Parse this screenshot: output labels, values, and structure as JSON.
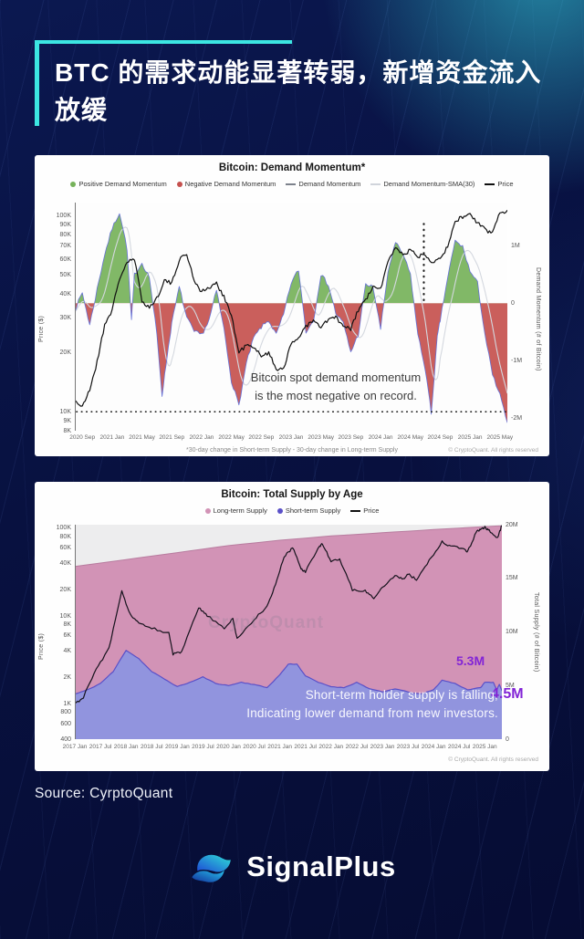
{
  "title": {
    "text": "BTC 的需求动能显著转弱，新增资金流入放缓",
    "accent_color": "#3ce6e2"
  },
  "source": {
    "text": "Source: CyrptoQuant"
  },
  "brand": {
    "name": "SignalPlus"
  },
  "chart_data": [
    {
      "type": "area+line",
      "title": "Bitcoin: Demand Momentum*",
      "legend": [
        {
          "label": "Positive Demand Momentum",
          "marker": "dot",
          "color": "#76b25a"
        },
        {
          "label": "Negative Demand Momentum",
          "marker": "dot",
          "color": "#c5514e"
        },
        {
          "label": "Demand Momentum",
          "marker": "line",
          "color": "#7d828c"
        },
        {
          "label": "Demand Momentum-SMA(30)",
          "marker": "line",
          "color": "#d0d4db"
        },
        {
          "label": "Price",
          "marker": "line",
          "color": "#101010"
        }
      ],
      "ylabel_left": "Price ($)",
      "ylabel_right": "Demand Momentum (# of Bitcoin)",
      "y_left_log": true,
      "y_left_range": [
        8000,
        117000
      ],
      "y_right_range": [
        -2.22,
        1.75
      ],
      "y_left_ticks": [
        {
          "label": "100K",
          "v": 100000
        },
        {
          "label": "90K",
          "v": 90000
        },
        {
          "label": "80K",
          "v": 80000
        },
        {
          "label": "70K",
          "v": 70000
        },
        {
          "label": "60K",
          "v": 60000
        },
        {
          "label": "50K",
          "v": 50000
        },
        {
          "label": "40K",
          "v": 40000
        },
        {
          "label": "30K",
          "v": 30000
        },
        {
          "label": "20K",
          "v": 20000
        },
        {
          "label": "10K",
          "v": 10000
        },
        {
          "label": "9K",
          "v": 9000
        },
        {
          "label": "8K",
          "v": 8000
        }
      ],
      "y_right_ticks": [
        {
          "label": "1M",
          "v": 1
        },
        {
          "label": "0",
          "v": 0
        },
        {
          "label": "-1M",
          "v": -1
        },
        {
          "label": "-2M",
          "v": -2
        }
      ],
      "months": 58,
      "x_ticks": [
        {
          "label": "2020 Sep",
          "m": 1
        },
        {
          "label": "2021 Jan",
          "m": 5
        },
        {
          "label": "2021 May",
          "m": 9
        },
        {
          "label": "2021 Sep",
          "m": 13
        },
        {
          "label": "2022 Jan",
          "m": 17
        },
        {
          "label": "2022 May",
          "m": 21
        },
        {
          "label": "2022 Sep",
          "m": 25
        },
        {
          "label": "2023 Jan",
          "m": 29
        },
        {
          "label": "2023 May",
          "m": 33
        },
        {
          "label": "2023 Sep",
          "m": 37
        },
        {
          "label": "2024 Jan",
          "m": 41
        },
        {
          "label": "2024 May",
          "m": 45
        },
        {
          "label": "2024 Sep",
          "m": 49
        },
        {
          "label": "2025 Jan",
          "m": 53
        },
        {
          "label": "2025 May",
          "m": 57
        }
      ],
      "price": [
        [
          0,
          11500
        ],
        [
          1,
          10500
        ],
        [
          2,
          13000
        ],
        [
          3,
          18000
        ],
        [
          4,
          28000
        ],
        [
          5,
          33000
        ],
        [
          6,
          48000
        ],
        [
          7,
          58000
        ],
        [
          8,
          60000
        ],
        [
          9,
          37000
        ],
        [
          10,
          34000
        ],
        [
          11,
          38000
        ],
        [
          12,
          47000
        ],
        [
          13,
          45000
        ],
        [
          14,
          60000
        ],
        [
          15,
          64000
        ],
        [
          16,
          47000
        ],
        [
          17,
          41000
        ],
        [
          18,
          43000
        ],
        [
          19,
          45000
        ],
        [
          20,
          39000
        ],
        [
          21,
          31000
        ],
        [
          22,
          20000
        ],
        [
          23,
          22000
        ],
        [
          24,
          21000
        ],
        [
          25,
          19500
        ],
        [
          26,
          20000
        ],
        [
          27,
          16500
        ],
        [
          28,
          16800
        ],
        [
          29,
          22000
        ],
        [
          30,
          24000
        ],
        [
          31,
          27500
        ],
        [
          32,
          29000
        ],
        [
          33,
          27000
        ],
        [
          34,
          29500
        ],
        [
          35,
          30500
        ],
        [
          36,
          27000
        ],
        [
          37,
          26500
        ],
        [
          38,
          33000
        ],
        [
          39,
          37500
        ],
        [
          40,
          43000
        ],
        [
          41,
          42500
        ],
        [
          42,
          58000
        ],
        [
          43,
          70000
        ],
        [
          44,
          63000
        ],
        [
          45,
          67000
        ],
        [
          46,
          62000
        ],
        [
          47,
          64000
        ],
        [
          48,
          58000
        ],
        [
          49,
          62000
        ],
        [
          50,
          69000
        ],
        [
          51,
          94000
        ],
        [
          52,
          99000
        ],
        [
          53,
          102000
        ],
        [
          54,
          92000
        ],
        [
          55,
          85000
        ],
        [
          56,
          82000
        ],
        [
          57,
          104000
        ],
        [
          58,
          107000
        ]
      ],
      "momentum": [
        [
          0,
          -0.12
        ],
        [
          1,
          0.18
        ],
        [
          2,
          -0.38
        ],
        [
          3,
          0.25
        ],
        [
          4,
          0.85
        ],
        [
          5,
          1.3
        ],
        [
          6,
          1.58
        ],
        [
          7,
          0.95
        ],
        [
          7.6,
          -0.3
        ],
        [
          8,
          0.5
        ],
        [
          9,
          0.7
        ],
        [
          10,
          0.45
        ],
        [
          11,
          -0.55
        ],
        [
          11.7,
          -1.6
        ],
        [
          12.4,
          -0.9
        ],
        [
          13,
          -0.35
        ],
        [
          14,
          0.28
        ],
        [
          15,
          -0.25
        ],
        [
          16,
          -0.5
        ],
        [
          17,
          -0.55
        ],
        [
          18,
          -0.3
        ],
        [
          19,
          0.22
        ],
        [
          20,
          -0.45
        ],
        [
          21,
          -1.35
        ],
        [
          22,
          -1.78
        ],
        [
          23,
          -1.05
        ],
        [
          24,
          -0.6
        ],
        [
          25,
          -0.42
        ],
        [
          26,
          -0.3
        ],
        [
          27,
          -0.55
        ],
        [
          28,
          -0.2
        ],
        [
          29,
          0.35
        ],
        [
          30,
          0.58
        ],
        [
          31,
          -0.5
        ],
        [
          32,
          -0.3
        ],
        [
          33,
          0.5
        ],
        [
          34,
          0.32
        ],
        [
          35,
          -0.18
        ],
        [
          36,
          -0.35
        ],
        [
          37,
          -0.85
        ],
        [
          38,
          -0.55
        ],
        [
          39,
          0.32
        ],
        [
          40,
          0.28
        ],
        [
          41,
          -0.45
        ],
        [
          42,
          0.55
        ],
        [
          43,
          1.05
        ],
        [
          44,
          0.85
        ],
        [
          45,
          0.5
        ],
        [
          46,
          -0.55
        ],
        [
          47,
          -1.15
        ],
        [
          47.8,
          -1.92
        ],
        [
          48.6,
          -0.6
        ],
        [
          49,
          -0.3
        ],
        [
          50,
          0.45
        ],
        [
          51,
          1.08
        ],
        [
          52,
          0.98
        ],
        [
          53,
          0.55
        ],
        [
          54,
          0.35
        ],
        [
          55,
          -0.55
        ],
        [
          56,
          -1.25
        ],
        [
          57,
          -1.6
        ],
        [
          58,
          -2.08
        ]
      ],
      "dotted_hline_price": 10000,
      "dotted_vline": {
        "m": 46.8,
        "y_from_momentum": 1.38,
        "y_to_momentum": 0.05
      },
      "annotation": {
        "line1": "Bitcoin spot demand momentum",
        "line2": "is the most negative on record."
      },
      "footnote": "*30-day change in Short-term Supply - 30-day change in Long-term Supply",
      "copyright": "© CryptoQuant. All rights reserved",
      "colors": {
        "positive": "#76b25a",
        "negative": "#c5514e",
        "momentum_line": "#6571d6",
        "sma_line": "#d4d8df",
        "price_line": "#101010",
        "plot_bg": "#fdfdfd"
      }
    },
    {
      "type": "stacked-area+line",
      "title": "Bitcoin: Total Supply by Age",
      "legend": [
        {
          "label": "Long-term Supply",
          "marker": "dot",
          "color": "#d293b6"
        },
        {
          "label": "Short-term Supply",
          "marker": "dot",
          "color": "#5a50c8"
        },
        {
          "label": "Price",
          "marker": "line",
          "color": "#101010"
        }
      ],
      "ylabel_left": "Price ($)",
      "ylabel_right": "Total Supply (# of Bitcoin)",
      "y_left_log": true,
      "y_left_range": [
        400,
        110000
      ],
      "y_right_range": [
        0,
        20
      ],
      "y_left_ticks": [
        {
          "label": "100K",
          "v": 100000
        },
        {
          "label": "80K",
          "v": 80000
        },
        {
          "label": "60K",
          "v": 60000
        },
        {
          "label": "40K",
          "v": 40000
        },
        {
          "label": "20K",
          "v": 20000
        },
        {
          "label": "10K",
          "v": 10000
        },
        {
          "label": "8K",
          "v": 8000
        },
        {
          "label": "6K",
          "v": 6000
        },
        {
          "label": "4K",
          "v": 4000
        },
        {
          "label": "2K",
          "v": 2000
        },
        {
          "label": "1K",
          "v": 1000
        },
        {
          "label": "800",
          "v": 800
        },
        {
          "label": "600",
          "v": 600
        },
        {
          "label": "400",
          "v": 400
        }
      ],
      "y_right_ticks": [
        {
          "label": "20M",
          "v": 20
        },
        {
          "label": "15M",
          "v": 15
        },
        {
          "label": "10M",
          "v": 10
        },
        {
          "label": "5M",
          "v": 5
        },
        {
          "label": "0",
          "v": 0
        }
      ],
      "months": 100,
      "x_ticks": [
        {
          "label": "2017 Jan",
          "m": 0
        },
        {
          "label": "2017 Jul",
          "m": 6
        },
        {
          "label": "2018 Jan",
          "m": 12
        },
        {
          "label": "2018 Jul",
          "m": 18
        },
        {
          "label": "2019 Jan",
          "m": 24
        },
        {
          "label": "2019 Jul",
          "m": 30
        },
        {
          "label": "2020 Jan",
          "m": 36
        },
        {
          "label": "2020 Jul",
          "m": 42
        },
        {
          "label": "2021 Jan",
          "m": 48
        },
        {
          "label": "2021 Jul",
          "m": 54
        },
        {
          "label": "2022 Jan",
          "m": 60
        },
        {
          "label": "2022 Jul",
          "m": 66
        },
        {
          "label": "2023 Jan",
          "m": 72
        },
        {
          "label": "2023 Jul",
          "m": 78
        },
        {
          "label": "2024 Jan",
          "m": 84
        },
        {
          "label": "2024 Jul",
          "m": 90
        },
        {
          "label": "2025 Jan",
          "m": 96
        }
      ],
      "total_supply": [
        [
          0,
          16.1
        ],
        [
          12,
          16.75
        ],
        [
          24,
          17.4
        ],
        [
          36,
          18.05
        ],
        [
          48,
          18.55
        ],
        [
          60,
          18.95
        ],
        [
          72,
          19.25
        ],
        [
          84,
          19.55
        ],
        [
          96,
          19.82
        ],
        [
          100,
          19.9
        ]
      ],
      "short_supply": [
        [
          0,
          4.2
        ],
        [
          3,
          4.6
        ],
        [
          6,
          5.2
        ],
        [
          9,
          6.3
        ],
        [
          12,
          8.3
        ],
        [
          15,
          7.5
        ],
        [
          18,
          6.3
        ],
        [
          21,
          5.6
        ],
        [
          24,
          4.9
        ],
        [
          27,
          5.3
        ],
        [
          30,
          5.8
        ],
        [
          33,
          5.2
        ],
        [
          36,
          5.0
        ],
        [
          39,
          5.3
        ],
        [
          42,
          5.1
        ],
        [
          45,
          4.8
        ],
        [
          48,
          6.0
        ],
        [
          50,
          7.0
        ],
        [
          52,
          7.0
        ],
        [
          54,
          5.9
        ],
        [
          57,
          5.3
        ],
        [
          60,
          4.9
        ],
        [
          63,
          4.8
        ],
        [
          66,
          5.3
        ],
        [
          69,
          4.7
        ],
        [
          72,
          4.4
        ],
        [
          75,
          4.7
        ],
        [
          78,
          4.4
        ],
        [
          81,
          4.2
        ],
        [
          84,
          4.6
        ],
        [
          86,
          5.5
        ],
        [
          89,
          5.2
        ],
        [
          92,
          4.6
        ],
        [
          95,
          4.8
        ],
        [
          96,
          5.3
        ],
        [
          98,
          5.3
        ],
        [
          98.8,
          4.6
        ],
        [
          99.4,
          5.1
        ],
        [
          100,
          4.5
        ]
      ],
      "price": [
        [
          0,
          1000
        ],
        [
          2,
          1200
        ],
        [
          5,
          2500
        ],
        [
          8,
          4300
        ],
        [
          11,
          19000
        ],
        [
          13,
          10500
        ],
        [
          15,
          8200
        ],
        [
          18,
          7400
        ],
        [
          22,
          6400
        ],
        [
          23,
          3700
        ],
        [
          25,
          3900
        ],
        [
          29,
          12500
        ],
        [
          31,
          10200
        ],
        [
          35,
          7200
        ],
        [
          37,
          9500
        ],
        [
          38,
          5500
        ],
        [
          42,
          9200
        ],
        [
          45,
          13000
        ],
        [
          47,
          23000
        ],
        [
          49,
          47000
        ],
        [
          51,
          61000
        ],
        [
          53,
          35000
        ],
        [
          54,
          32000
        ],
        [
          57,
          61000
        ],
        [
          58,
          66000
        ],
        [
          60,
          42000
        ],
        [
          62,
          45000
        ],
        [
          65,
          20000
        ],
        [
          68,
          19500
        ],
        [
          70,
          16000
        ],
        [
          72,
          21500
        ],
        [
          75,
          29000
        ],
        [
          77,
          26500
        ],
        [
          78,
          30500
        ],
        [
          80,
          26000
        ],
        [
          83,
          43000
        ],
        [
          86,
          70000
        ],
        [
          88,
          63000
        ],
        [
          91,
          58000
        ],
        [
          92,
          55000
        ],
        [
          94,
          90000
        ],
        [
          95,
          99000
        ],
        [
          96,
          103000
        ],
        [
          97,
          94000
        ],
        [
          99,
          78000
        ],
        [
          100,
          108000
        ]
      ],
      "callouts": {
        "peak": "5.3M",
        "current": "4.5M"
      },
      "watermark": "CryptoQuant",
      "annotation": {
        "line1": "Short-term holder supply is falling,",
        "line2": "Indicating lower demand from new investors."
      },
      "copyright": "© CryptoQuant. All rights reserved",
      "colors": {
        "long_term": "#d293b6",
        "long_term_edge": "#b87c9f",
        "short_term": "#9194de",
        "short_term_edge": "#5a50c8",
        "price_line": "#15121c",
        "callout": "#8224d6",
        "plot_bg": "#ededee"
      }
    }
  ]
}
